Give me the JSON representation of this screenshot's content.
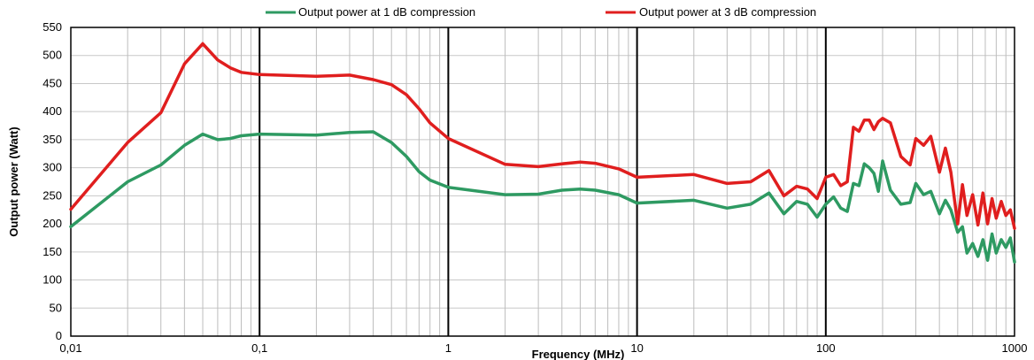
{
  "chart_data": {
    "type": "line",
    "title": "",
    "xlabel": "Frequency (MHz)",
    "ylabel": "Output power (Watt)",
    "xscale": "log",
    "xlim": [
      0.01,
      1000
    ],
    "ylim": [
      0,
      550
    ],
    "ytick_step": 50,
    "grid": true,
    "legend_position": "top",
    "x_ticks": [
      {
        "value": 0.01,
        "label": "0,01"
      },
      {
        "value": 0.1,
        "label": "0,1"
      },
      {
        "value": 1,
        "label": "1"
      },
      {
        "value": 10,
        "label": "10"
      },
      {
        "value": 100,
        "label": "100"
      },
      {
        "value": 1000,
        "label": "1000"
      }
    ],
    "y_ticks": [
      0,
      50,
      100,
      150,
      200,
      250,
      300,
      350,
      400,
      450,
      500,
      550
    ],
    "series": [
      {
        "name": "Output power at 1 dB compression",
        "color": "#2e9a62",
        "points": [
          [
            0.01,
            195
          ],
          [
            0.02,
            275
          ],
          [
            0.03,
            305
          ],
          [
            0.04,
            340
          ],
          [
            0.05,
            360
          ],
          [
            0.06,
            350
          ],
          [
            0.07,
            352
          ],
          [
            0.08,
            357
          ],
          [
            0.1,
            360
          ],
          [
            0.2,
            358
          ],
          [
            0.3,
            363
          ],
          [
            0.4,
            364
          ],
          [
            0.5,
            345
          ],
          [
            0.6,
            320
          ],
          [
            0.7,
            293
          ],
          [
            0.8,
            278
          ],
          [
            1,
            265
          ],
          [
            2,
            252
          ],
          [
            3,
            253
          ],
          [
            4,
            260
          ],
          [
            5,
            262
          ],
          [
            6,
            260
          ],
          [
            8,
            252
          ],
          [
            10,
            237
          ],
          [
            20,
            242
          ],
          [
            30,
            228
          ],
          [
            40,
            235
          ],
          [
            50,
            255
          ],
          [
            60,
            218
          ],
          [
            70,
            240
          ],
          [
            80,
            235
          ],
          [
            90,
            212
          ],
          [
            100,
            235
          ],
          [
            110,
            248
          ],
          [
            120,
            228
          ],
          [
            130,
            222
          ],
          [
            140,
            272
          ],
          [
            150,
            268
          ],
          [
            160,
            307
          ],
          [
            170,
            300
          ],
          [
            180,
            290
          ],
          [
            190,
            258
          ],
          [
            200,
            312
          ],
          [
            220,
            260
          ],
          [
            250,
            235
          ],
          [
            280,
            238
          ],
          [
            300,
            272
          ],
          [
            330,
            252
          ],
          [
            360,
            258
          ],
          [
            400,
            218
          ],
          [
            430,
            242
          ],
          [
            460,
            225
          ],
          [
            500,
            185
          ],
          [
            530,
            195
          ],
          [
            560,
            148
          ],
          [
            600,
            165
          ],
          [
            640,
            142
          ],
          [
            680,
            172
          ],
          [
            720,
            135
          ],
          [
            760,
            182
          ],
          [
            800,
            148
          ],
          [
            850,
            172
          ],
          [
            900,
            158
          ],
          [
            950,
            175
          ],
          [
            1000,
            132
          ]
        ]
      },
      {
        "name": "Output power at 3 dB compression",
        "color": "#e01e1e",
        "points": [
          [
            0.01,
            226
          ],
          [
            0.02,
            345
          ],
          [
            0.03,
            398
          ],
          [
            0.04,
            485
          ],
          [
            0.05,
            521
          ],
          [
            0.06,
            492
          ],
          [
            0.07,
            478
          ],
          [
            0.08,
            470
          ],
          [
            0.1,
            466
          ],
          [
            0.2,
            463
          ],
          [
            0.3,
            465
          ],
          [
            0.4,
            457
          ],
          [
            0.5,
            448
          ],
          [
            0.6,
            430
          ],
          [
            0.7,
            405
          ],
          [
            0.8,
            380
          ],
          [
            1,
            352
          ],
          [
            2,
            306
          ],
          [
            3,
            302
          ],
          [
            4,
            307
          ],
          [
            5,
            310
          ],
          [
            6,
            308
          ],
          [
            8,
            298
          ],
          [
            10,
            283
          ],
          [
            20,
            288
          ],
          [
            30,
            272
          ],
          [
            40,
            275
          ],
          [
            50,
            295
          ],
          [
            60,
            250
          ],
          [
            70,
            267
          ],
          [
            80,
            262
          ],
          [
            90,
            245
          ],
          [
            100,
            283
          ],
          [
            110,
            288
          ],
          [
            120,
            268
          ],
          [
            130,
            275
          ],
          [
            140,
            372
          ],
          [
            150,
            365
          ],
          [
            160,
            385
          ],
          [
            170,
            385
          ],
          [
            180,
            368
          ],
          [
            190,
            382
          ],
          [
            200,
            388
          ],
          [
            220,
            380
          ],
          [
            250,
            320
          ],
          [
            280,
            305
          ],
          [
            300,
            352
          ],
          [
            330,
            340
          ],
          [
            360,
            356
          ],
          [
            400,
            292
          ],
          [
            430,
            335
          ],
          [
            460,
            292
          ],
          [
            500,
            200
          ],
          [
            530,
            270
          ],
          [
            560,
            215
          ],
          [
            600,
            252
          ],
          [
            640,
            198
          ],
          [
            680,
            255
          ],
          [
            720,
            200
          ],
          [
            760,
            245
          ],
          [
            800,
            210
          ],
          [
            850,
            240
          ],
          [
            900,
            215
          ],
          [
            950,
            225
          ],
          [
            1000,
            192
          ]
        ]
      }
    ]
  }
}
